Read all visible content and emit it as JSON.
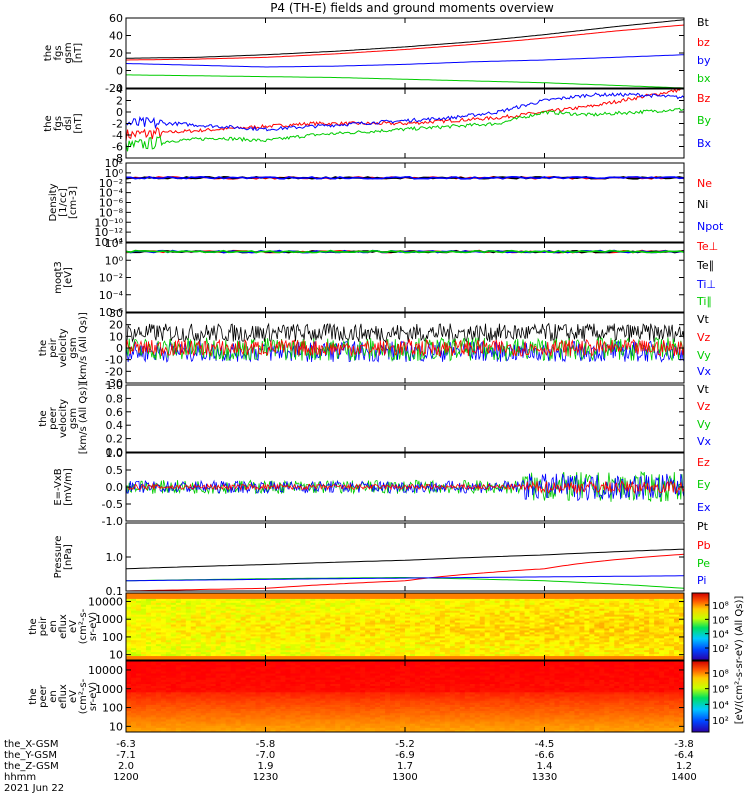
{
  "chart_data": {
    "type": "line",
    "title": "P4 (TH-E) fields and ground moments overview",
    "x": {
      "label": "hhmm",
      "ticks": [
        "1200",
        "1230",
        "1300",
        "1330",
        "1400"
      ],
      "range": [
        "12:00",
        "14:00"
      ]
    },
    "date_label": "2021 Jun 22",
    "ephemeris": [
      {
        "name": "the_X-GSM",
        "values": [
          "-6.3",
          "-5.8",
          "-5.2",
          "-4.5",
          "-3.8"
        ]
      },
      {
        "name": "the_Y-GSM",
        "values": [
          "-7.1",
          "-7.0",
          "-6.9",
          "-6.6",
          "-6.4"
        ]
      },
      {
        "name": "the_Z-GSM",
        "values": [
          "2.0",
          "1.9",
          "1.7",
          "1.4",
          "1.2"
        ]
      }
    ],
    "panels": [
      {
        "id": "fgs",
        "ylabel": [
          "the",
          "fgs",
          "gsm",
          "[nT]"
        ],
        "ylim": [
          -20,
          60
        ],
        "yticks": [
          "60",
          "40",
          "20",
          "0",
          "-20"
        ],
        "legend": [
          "Bt",
          "bz",
          "by",
          "bx"
        ],
        "series": [
          {
            "name": "Bt",
            "color": "#000000",
            "x": [
              0,
              15,
              30,
              45,
              60,
              75,
              90,
              105,
              120
            ],
            "y": [
              14,
              15,
              18,
              22,
              27,
              33,
              41,
              50,
              58
            ]
          },
          {
            "name": "bz",
            "color": "#ff0000",
            "x": [
              0,
              15,
              30,
              45,
              60,
              75,
              90,
              105,
              120
            ],
            "y": [
              12,
              13,
              15,
              19,
              24,
              30,
              37,
              45,
              52
            ]
          },
          {
            "name": "by",
            "color": "#0000ff",
            "x": [
              0,
              15,
              30,
              45,
              60,
              75,
              90,
              105,
              120
            ],
            "y": [
              8,
              6,
              4,
              5,
              7,
              10,
              12,
              15,
              18
            ]
          },
          {
            "name": "bx",
            "color": "#00cc00",
            "x": [
              0,
              15,
              30,
              45,
              60,
              75,
              90,
              105,
              120
            ],
            "y": [
              -5,
              -6,
              -7,
              -8,
              -10,
              -12,
              -14,
              -17,
              -20
            ]
          }
        ]
      },
      {
        "id": "fgs_dsl",
        "ylabel": [
          "the",
          "fgs",
          "dsl",
          "[nT]"
        ],
        "ylim": [
          -8,
          4
        ],
        "yticks": [
          "4",
          "2",
          "0",
          "-2",
          "-4",
          "-6",
          "-8"
        ],
        "legend": [
          "Bz",
          "By",
          "Bx"
        ],
        "series": [
          {
            "name": "Bz",
            "color": "#ff0000",
            "x": [
              0,
              10,
              20,
              30,
              40,
              50,
              60,
              70,
              80,
              90,
              100,
              110,
              120
            ],
            "y": [
              -4,
              -3.5,
              -3,
              -2.5,
              -2,
              -2,
              -2,
              -1.5,
              -1,
              0,
              1,
              2.5,
              4
            ]
          },
          {
            "name": "By",
            "color": "#00cc00",
            "x": [
              0,
              10,
              20,
              30,
              40,
              50,
              60,
              70,
              80,
              90,
              100,
              110,
              120
            ],
            "y": [
              -6,
              -5,
              -4.5,
              -5,
              -4,
              -3.5,
              -3,
              -2.5,
              -2,
              0,
              -0.5,
              0,
              0.5
            ]
          },
          {
            "name": "Bx",
            "color": "#0000ff",
            "x": [
              0,
              10,
              20,
              30,
              40,
              50,
              60,
              70,
              80,
              90,
              100,
              110,
              120
            ],
            "y": [
              -2,
              -2,
              -2.5,
              -3,
              -2.5,
              -2,
              -1.5,
              -1,
              0,
              2,
              3,
              3,
              2.5
            ]
          }
        ]
      },
      {
        "id": "density",
        "ylabel": [
          "Density",
          "[1/cc]",
          "[cm-3]"
        ],
        "scale": "log",
        "ylim": [
          1e-14,
          100
        ],
        "yticks": [
          "10²",
          "10⁰",
          "10⁻²",
          "10⁻⁴",
          "10⁻⁶",
          "10⁻⁸",
          "10⁻¹⁰",
          "10⁻¹²",
          "10⁻¹⁴"
        ],
        "legend": [
          "Ne",
          "Ni",
          "Npot"
        ],
        "series": [
          {
            "name": "Ne",
            "color": "#ff0000",
            "level": 0.1
          },
          {
            "name": "Ni",
            "color": "#000000",
            "level": 0.1
          },
          {
            "name": "Npot",
            "color": "#0000ff",
            "level": 0.1
          }
        ]
      },
      {
        "id": "temperature",
        "ylabel": [
          "moqt3",
          "[eV]"
        ],
        "scale": "log",
        "ylim": [
          1e-06,
          100
        ],
        "yticks": [
          "10²",
          "10⁰",
          "10⁻²",
          "10⁻⁴",
          "10⁻⁶"
        ],
        "legend": [
          "Te⊥",
          "Te∥",
          "Ti⊥",
          "Ti∥"
        ],
        "series": [
          {
            "name": "Te⊥",
            "color": "#ff0000",
            "level": 10
          },
          {
            "name": "Te∥",
            "color": "#000000",
            "level": 10
          },
          {
            "name": "Ti⊥",
            "color": "#0000ff",
            "level": 10
          },
          {
            "name": "Ti∥",
            "color": "#00cc00",
            "level": 10
          }
        ]
      },
      {
        "id": "peir_velocity",
        "ylabel": [
          "the",
          "peir",
          "velocity",
          "gsm",
          "[km/s (All Qs)]"
        ],
        "ylim": [
          -30,
          30
        ],
        "yticks": [
          "30",
          "20",
          "10",
          "0",
          "-10",
          "-20",
          "-30"
        ],
        "legend": [
          "Vt",
          "Vz",
          "Vy",
          "Vx"
        ],
        "series": [
          {
            "name": "Vt",
            "color": "#000000",
            "mean": 13,
            "amp": 8
          },
          {
            "name": "Vx",
            "color": "#0000ff",
            "mean": -3,
            "amp": 9
          },
          {
            "name": "Vy",
            "color": "#00cc00",
            "mean": -1,
            "amp": 10
          },
          {
            "name": "Vz",
            "color": "#ff0000",
            "mean": 0,
            "amp": 7
          }
        ]
      },
      {
        "id": "peer_velocity",
        "ylabel": [
          "the",
          "peer",
          "velocity",
          "gsm",
          "[km/s (All Qs)]"
        ],
        "ylim": [
          0,
          1
        ],
        "yticks": [
          "1.0",
          "0.8",
          "0.6",
          "0.4",
          "0.2",
          "0.0"
        ],
        "legend": [
          "Vt",
          "Vz",
          "Vy",
          "Vx"
        ],
        "series": []
      },
      {
        "id": "efield",
        "ylabel": [
          "E=-VxB",
          "[mV/m]"
        ],
        "ylim": [
          -1,
          1
        ],
        "yticks": [
          "1.0",
          "0.5",
          "0.0",
          "-0.5",
          "-1.0"
        ],
        "legend": [
          "Ez",
          "Ey",
          "Ex"
        ],
        "series": [
          {
            "name": "Ey",
            "color": "#00cc00",
            "mean": 0,
            "amp": 0.2
          },
          {
            "name": "Ex",
            "color": "#0000ff",
            "mean": 0,
            "amp": 0.18
          },
          {
            "name": "Ez",
            "color": "#ff0000",
            "mean": 0,
            "amp": 0.08
          }
        ]
      },
      {
        "id": "pressure",
        "ylabel": [
          "Pressure",
          "[nPa]"
        ],
        "scale": "log",
        "ylim": [
          0.1,
          10
        ],
        "yticks": [
          "1.0",
          "0.1"
        ],
        "legend": [
          "Pt",
          "Pb",
          "Pe",
          "Pi"
        ],
        "series": [
          {
            "name": "Pt",
            "color": "#000000",
            "x": [
              0,
              30,
              60,
              90,
              120
            ],
            "y": [
              0.45,
              0.6,
              0.8,
              1.15,
              1.7
            ]
          },
          {
            "name": "Pb",
            "color": "#ff0000",
            "x": [
              0,
              30,
              60,
              90,
              120
            ],
            "y": [
              0.1,
              0.12,
              0.2,
              0.45,
              1.2
            ]
          },
          {
            "name": "Pe",
            "color": "#00cc00",
            "x": [
              0,
              30,
              60,
              90,
              120
            ],
            "y": [
              0.2,
              0.23,
              0.25,
              0.2,
              0.12
            ]
          },
          {
            "name": "Pi",
            "color": "#0000ff",
            "x": [
              0,
              30,
              60,
              90,
              120
            ],
            "y": [
              0.2,
              0.22,
              0.24,
              0.26,
              0.28
            ]
          }
        ]
      },
      {
        "id": "peir_eflux",
        "type": "heatmap",
        "ylabel": [
          "the",
          "peir",
          "en",
          "eflux",
          "eV",
          "(cm²-s-",
          "sr-eV)"
        ],
        "scale": "log",
        "ylim": [
          5,
          30000
        ],
        "yticks": [
          "10000",
          "1000",
          "100",
          "10"
        ],
        "colorbar": {
          "label": "[eV/(cm²-s-sr-eV) (All Qs)]",
          "ticks": [
            "10⁸",
            "10⁶",
            "10⁴",
            "10²"
          ],
          "range": [
            "10¹",
            "10⁹"
          ]
        }
      },
      {
        "id": "peer_eflux",
        "type": "heatmap",
        "ylabel": [
          "the",
          "peer",
          "en",
          "eflux",
          "eV",
          "(cm²-s-",
          "sr-eV)"
        ],
        "scale": "log",
        "ylim": [
          5,
          30000
        ],
        "yticks": [
          "10000",
          "1000",
          "100",
          "10"
        ],
        "colorbar": {
          "label": "[eV/(cm²-s-sr-eV) (All Qs)]",
          "ticks": [
            "10⁸",
            "10⁶",
            "10⁴",
            "10²"
          ],
          "range": [
            "10¹",
            "10⁹"
          ]
        }
      }
    ]
  }
}
